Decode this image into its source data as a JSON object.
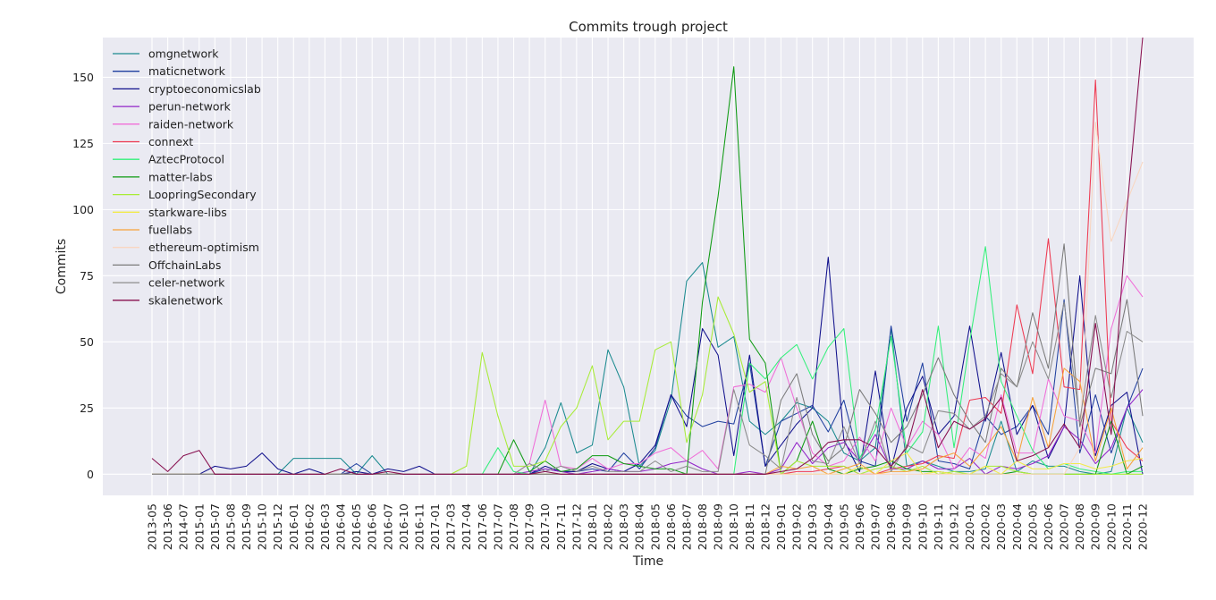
{
  "chart_data": {
    "type": "line",
    "title": "Commits trough project",
    "xlabel": "Time",
    "ylabel": "Commits",
    "ylim": [
      -8,
      165
    ],
    "yticks": [
      0,
      25,
      50,
      75,
      100,
      125,
      150
    ],
    "grid": true,
    "legend_placement": "top-left",
    "x": [
      "2013-05",
      "2013-06",
      "2014-07",
      "2015-01",
      "2015-07",
      "2015-08",
      "2015-09",
      "2015-10",
      "2015-12",
      "2016-01",
      "2016-02",
      "2016-03",
      "2016-04",
      "2016-05",
      "2016-06",
      "2016-07",
      "2016-10",
      "2016-11",
      "2017-01",
      "2017-03",
      "2017-04",
      "2017-06",
      "2017-07",
      "2017-08",
      "2017-09",
      "2017-10",
      "2017-11",
      "2017-12",
      "2018-01",
      "2018-02",
      "2018-03",
      "2018-04",
      "2018-05",
      "2018-06",
      "2018-07",
      "2018-08",
      "2018-09",
      "2018-10",
      "2018-11",
      "2018-12",
      "2019-01",
      "2019-02",
      "2019-03",
      "2019-04",
      "2019-05",
      "2019-06",
      "2019-07",
      "2019-08",
      "2019-09",
      "2019-10",
      "2019-11",
      "2019-12",
      "2020-01",
      "2020-02",
      "2020-03",
      "2020-04",
      "2020-05",
      "2020-06",
      "2020-07",
      "2020-08",
      "2020-09",
      "2020-10",
      "2020-11",
      "2020-12"
    ],
    "series": [
      {
        "name": "omgnetwork",
        "color": "#1a8a8f",
        "values": [
          0,
          0,
          0,
          0,
          0,
          0,
          0,
          0,
          0,
          6,
          6,
          6,
          6,
          0,
          7,
          0,
          0,
          0,
          0,
          0,
          0,
          0,
          0,
          0,
          0,
          10,
          27,
          8,
          11,
          47,
          33,
          3,
          9,
          28,
          73,
          80,
          48,
          52,
          20,
          15,
          20,
          27,
          25,
          20,
          8,
          5,
          10,
          55,
          3,
          5,
          3,
          1,
          1,
          2,
          20,
          1,
          5,
          3,
          3,
          1,
          0,
          1,
          25,
          12
        ]
      },
      {
        "name": "maticnetwork",
        "color": "#1f3f9f",
        "values": [
          0,
          0,
          0,
          0,
          0,
          0,
          0,
          0,
          0,
          0,
          0,
          0,
          0,
          4,
          0,
          0,
          0,
          0,
          0,
          0,
          0,
          0,
          0,
          0,
          0,
          2,
          1,
          1,
          2,
          1,
          8,
          2,
          10,
          30,
          22,
          18,
          20,
          19,
          42,
          3,
          20,
          23,
          26,
          16,
          28,
          5,
          3,
          56,
          20,
          42,
          5,
          4,
          2,
          22,
          15,
          18,
          26,
          15,
          66,
          8,
          30,
          8,
          25,
          40
        ]
      },
      {
        "name": "cryptoeconomicslab",
        "color": "#10108c",
        "values": [
          0,
          0,
          0,
          0,
          3,
          2,
          3,
          8,
          2,
          0,
          2,
          0,
          0,
          1,
          0,
          2,
          1,
          3,
          0,
          0,
          0,
          0,
          0,
          0,
          0,
          3,
          1,
          1,
          4,
          2,
          1,
          4,
          11,
          30,
          18,
          55,
          45,
          7,
          45,
          3,
          11,
          19,
          25,
          82,
          13,
          1,
          39,
          2,
          25,
          37,
          15,
          22,
          56,
          20,
          46,
          15,
          26,
          6,
          18,
          75,
          7,
          26,
          31,
          0
        ]
      },
      {
        "name": "perun-network",
        "color": "#9224c8",
        "values": [
          0,
          0,
          0,
          0,
          0,
          0,
          0,
          0,
          0,
          0,
          0,
          0,
          0,
          0,
          0,
          0,
          0,
          0,
          0,
          0,
          0,
          0,
          0,
          0,
          1,
          2,
          1,
          0,
          1,
          2,
          1,
          1,
          2,
          4,
          5,
          2,
          0,
          0,
          1,
          0,
          2,
          12,
          4,
          10,
          12,
          5,
          15,
          2,
          2,
          5,
          2,
          2,
          6,
          0,
          3,
          2,
          4,
          7,
          18,
          13,
          4,
          10,
          25,
          32
        ]
      },
      {
        "name": "raiden-network",
        "color": "#f06ed8",
        "values": [
          0,
          0,
          0,
          0,
          0,
          0,
          0,
          0,
          0,
          0,
          0,
          0,
          0,
          0,
          0,
          0,
          0,
          0,
          0,
          0,
          0,
          0,
          0,
          0,
          4,
          28,
          3,
          2,
          6,
          2,
          4,
          4,
          8,
          10,
          5,
          9,
          2,
          33,
          34,
          31,
          44,
          25,
          8,
          3,
          5,
          14,
          5,
          25,
          10,
          20,
          15,
          2,
          10,
          6,
          30,
          8,
          8,
          36,
          22,
          20,
          8,
          55,
          75,
          67
        ]
      },
      {
        "name": "connext",
        "color": "#ee3a52",
        "values": [
          0,
          0,
          0,
          0,
          0,
          0,
          0,
          0,
          0,
          0,
          0,
          0,
          0,
          0,
          0,
          0,
          0,
          0,
          0,
          0,
          0,
          0,
          0,
          0,
          0,
          0,
          0,
          0,
          0,
          0,
          0,
          0,
          0,
          0,
          0,
          0,
          0,
          0,
          0,
          0,
          0,
          1,
          1,
          2,
          3,
          0,
          0,
          2,
          3,
          4,
          7,
          6,
          28,
          29,
          23,
          64,
          38,
          89,
          33,
          32,
          149,
          20,
          10,
          5
        ]
      },
      {
        "name": "AztecProtocol",
        "color": "#33f07a",
        "values": [
          0,
          0,
          0,
          0,
          0,
          0,
          0,
          0,
          0,
          0,
          0,
          0,
          0,
          0,
          0,
          0,
          0,
          0,
          0,
          0,
          0,
          0,
          10,
          1,
          0,
          0,
          0,
          0,
          0,
          0,
          0,
          0,
          0,
          0,
          0,
          0,
          0,
          0,
          42,
          36,
          44,
          49,
          36,
          48,
          55,
          6,
          17,
          52,
          8,
          16,
          56,
          10,
          50,
          86,
          35,
          22,
          9,
          2,
          4,
          2,
          1,
          0,
          1,
          1
        ]
      },
      {
        "name": "matter-labs",
        "color": "#0e9a12",
        "values": [
          0,
          0,
          0,
          0,
          0,
          0,
          0,
          0,
          0,
          0,
          0,
          0,
          0,
          0,
          0,
          0,
          0,
          0,
          0,
          0,
          0,
          0,
          0,
          13,
          1,
          5,
          1,
          2,
          7,
          7,
          4,
          3,
          2,
          2,
          0,
          65,
          105,
          154,
          51,
          42,
          0,
          5,
          20,
          2,
          0,
          2,
          3,
          5,
          2,
          1,
          1,
          0,
          0,
          0,
          0,
          1,
          0,
          0,
          0,
          0,
          0,
          20,
          0,
          3
        ]
      },
      {
        "name": "LoopringSecondary",
        "color": "#a8ec36",
        "values": [
          0,
          0,
          0,
          0,
          0,
          0,
          0,
          0,
          0,
          0,
          0,
          0,
          0,
          0,
          0,
          0,
          0,
          0,
          0,
          0,
          3,
          46,
          22,
          3,
          3,
          5,
          18,
          25,
          41,
          13,
          20,
          20,
          47,
          50,
          12,
          30,
          67,
          53,
          31,
          35,
          0,
          5,
          3,
          3,
          3,
          0,
          2,
          3,
          1,
          3,
          0,
          1,
          0,
          3,
          3,
          1,
          0,
          0,
          0,
          0,
          0,
          0,
          0,
          0
        ]
      },
      {
        "name": "starkware-libs",
        "color": "#f2ea4a",
        "values": [
          0,
          0,
          0,
          0,
          0,
          0,
          0,
          0,
          0,
          0,
          0,
          0,
          0,
          0,
          0,
          0,
          0,
          0,
          0,
          0,
          0,
          0,
          0,
          0,
          0,
          0,
          0,
          0,
          0,
          0,
          0,
          0,
          0,
          0,
          0,
          0,
          0,
          0,
          0,
          0,
          0,
          0,
          0,
          0,
          0,
          3,
          0,
          5,
          8,
          0,
          1,
          0,
          0,
          3,
          0,
          5,
          2,
          2,
          4,
          4,
          2,
          3,
          5,
          6
        ]
      },
      {
        "name": "fuellabs",
        "color": "#f7a23a",
        "values": [
          0,
          0,
          0,
          0,
          0,
          0,
          0,
          0,
          0,
          0,
          0,
          0,
          0,
          0,
          0,
          0,
          0,
          0,
          0,
          0,
          0,
          0,
          0,
          0,
          0,
          0,
          0,
          0,
          0,
          0,
          0,
          0,
          0,
          0,
          0,
          0,
          0,
          0,
          0,
          0,
          3,
          2,
          3,
          0,
          2,
          4,
          0,
          1,
          1,
          2,
          6,
          8,
          3,
          10,
          18,
          5,
          29,
          10,
          40,
          35,
          5,
          25,
          2,
          10
        ]
      },
      {
        "name": "ethereum-optimism",
        "color": "#f9d6c0",
        "values": [
          0,
          0,
          0,
          0,
          0,
          0,
          0,
          0,
          0,
          0,
          0,
          0,
          0,
          0,
          0,
          0,
          0,
          0,
          0,
          0,
          0,
          0,
          0,
          0,
          0,
          0,
          0,
          0,
          0,
          0,
          0,
          0,
          0,
          0,
          0,
          0,
          0,
          0,
          0,
          0,
          0,
          0,
          0,
          0,
          0,
          0,
          0,
          0,
          0,
          0,
          0,
          0,
          0,
          0,
          0,
          0,
          0,
          0,
          0,
          10,
          133,
          88,
          103,
          118
        ]
      },
      {
        "name": "OffchainLabs",
        "color": "#7a7a7a",
        "values": [
          0,
          0,
          0,
          0,
          0,
          0,
          0,
          0,
          0,
          0,
          0,
          0,
          0,
          0,
          0,
          0,
          0,
          0,
          0,
          0,
          0,
          0,
          0,
          0,
          0,
          0,
          0,
          0,
          0,
          0,
          0,
          0,
          0,
          0,
          0,
          0,
          0,
          0,
          0,
          0,
          28,
          38,
          15,
          5,
          10,
          32,
          23,
          12,
          18,
          30,
          44,
          30,
          20,
          12,
          40,
          33,
          61,
          40,
          87,
          18,
          40,
          38,
          66,
          22
        ]
      },
      {
        "name": "celer-network",
        "color": "#8c8c8c",
        "values": [
          0,
          0,
          0,
          0,
          0,
          0,
          0,
          0,
          0,
          0,
          0,
          0,
          0,
          0,
          0,
          0,
          0,
          0,
          0,
          0,
          0,
          0,
          0,
          0,
          4,
          1,
          3,
          1,
          3,
          1,
          1,
          1,
          5,
          1,
          3,
          1,
          1,
          32,
          11,
          7,
          2,
          29,
          5,
          4,
          18,
          4,
          20,
          1,
          11,
          8,
          24,
          23,
          17,
          22,
          38,
          33,
          50,
          36,
          65,
          20,
          60,
          29,
          54,
          50
        ]
      },
      {
        "name": "skalenetwork",
        "color": "#870e4e",
        "values": [
          6,
          1,
          7,
          9,
          0,
          0,
          0,
          0,
          0,
          0,
          0,
          0,
          2,
          0,
          0,
          1,
          0,
          0,
          0,
          0,
          0,
          0,
          0,
          0,
          0,
          1,
          0,
          0,
          0,
          0,
          0,
          0,
          0,
          0,
          0,
          0,
          0,
          0,
          0,
          0,
          1,
          2,
          6,
          12,
          13,
          13,
          10,
          3,
          10,
          32,
          10,
          20,
          17,
          21,
          29,
          5,
          7,
          10,
          19,
          10,
          57,
          15,
          100,
          165
        ]
      }
    ]
  }
}
